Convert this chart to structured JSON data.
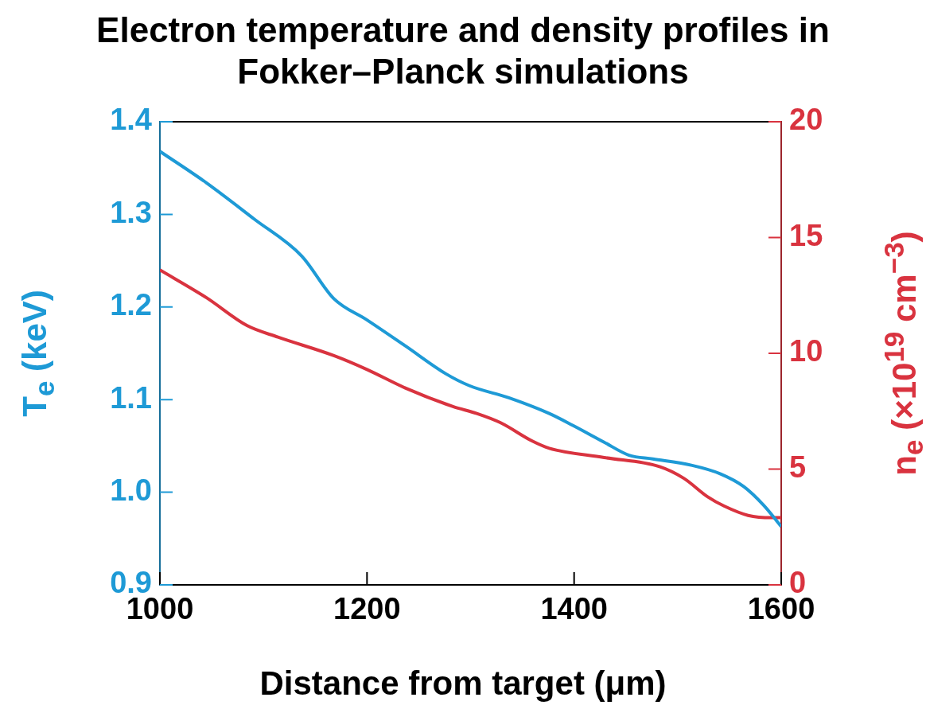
{
  "chart_data": {
    "type": "line",
    "title": "Electron temperature and density profiles in Fokker–Planck simulations",
    "xlabel": "Distance from target (μm)",
    "ylabel": "T$_{e}$ (keV)",
    "y2label": "n$_{e}$ (×10$^{19}$ cm$^{−3}$)",
    "xlim": [
      1000,
      1600
    ],
    "xticks": [
      1000,
      1200,
      1400,
      1600
    ],
    "ylim": [
      0.9,
      1.4
    ],
    "yticks": [
      {
        "value": 0.9,
        "label": "0.9"
      },
      {
        "value": 1.0,
        "label": "1.0"
      },
      {
        "value": 1.1,
        "label": "1.1"
      },
      {
        "value": 1.2,
        "label": "1.2"
      },
      {
        "value": 1.3,
        "label": "1.3"
      },
      {
        "value": 1.4,
        "label": "1.4"
      }
    ],
    "y2lim": [
      0,
      20
    ],
    "y2ticks": [
      0,
      5,
      10,
      15,
      20
    ],
    "grid": false,
    "legend": false,
    "marker": "none",
    "line_style": "solid",
    "series": [
      {
        "color": "#1e9ad6",
        "x": [
          1000,
          1045,
          1091,
          1137,
          1168,
          1200,
          1237,
          1276,
          1299,
          1337,
          1376,
          1399,
          1429,
          1453,
          1476,
          1514,
          1541,
          1564,
          1583,
          1600
        ],
        "values": [
          1.368,
          1.334,
          1.295,
          1.255,
          1.209,
          1.186,
          1.158,
          1.128,
          1.115,
          1.102,
          1.085,
          1.072,
          1.054,
          1.04,
          1.036,
          1.029,
          1.02,
          1.006,
          0.986,
          0.963
        ]
      },
      {
        "color": "#d9333f",
        "axis": "y2",
        "x": [
          1000,
          1045,
          1084,
          1114,
          1168,
          1200,
          1237,
          1283,
          1306,
          1329,
          1360,
          1376,
          1429,
          1483,
          1506,
          1529,
          1545,
          1568,
          1591,
          1600
        ],
        "values": [
          13.6,
          12.4,
          11.2,
          10.7,
          9.9,
          9.3,
          8.5,
          7.7,
          7.4,
          7.0,
          6.2,
          5.9,
          5.5,
          5.1,
          4.6,
          3.8,
          3.4,
          3.0,
          2.9,
          2.9
        ]
      }
    ]
  }
}
